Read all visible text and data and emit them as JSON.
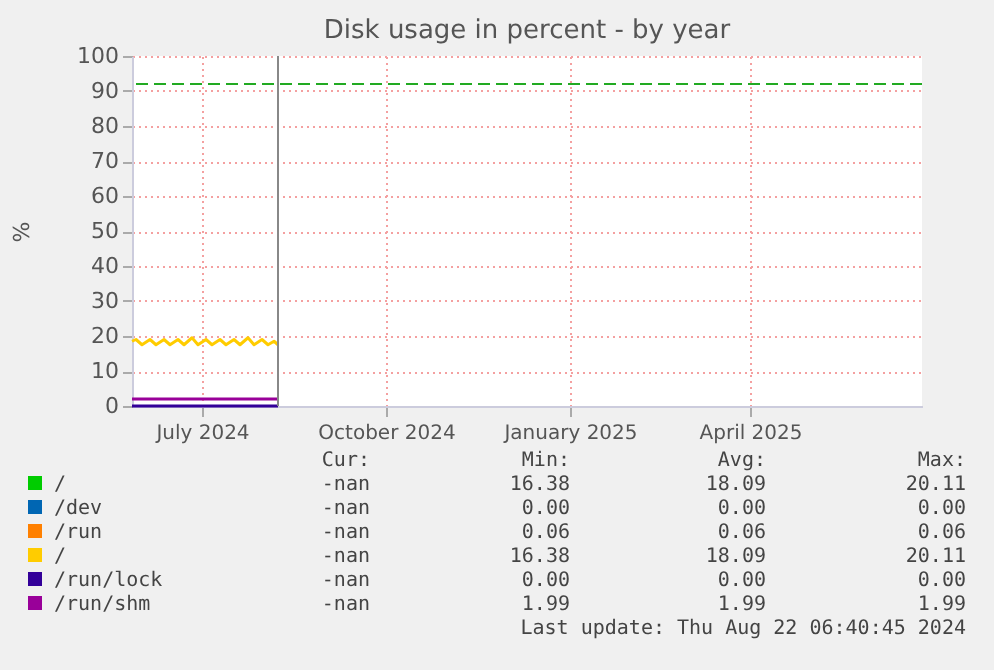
{
  "chart_data": {
    "type": "line",
    "title": "Disk usage in percent - by year",
    "ylabel": "%",
    "xlim": [
      "2024-06-10",
      "2025-07-10"
    ],
    "xticks": [
      {
        "value": "2024-07-15",
        "label": "July 2024"
      },
      {
        "value": "2024-10-15",
        "label": "October 2024"
      },
      {
        "value": "2025-01-15",
        "label": "January 2025"
      },
      {
        "value": "2025-04-15",
        "label": "April 2025"
      }
    ],
    "ylim": [
      0,
      100
    ],
    "yticks": [
      0,
      10,
      20,
      30,
      40,
      50,
      60,
      70,
      80,
      90,
      100
    ],
    "grid": true,
    "legend": "bottom",
    "line_style": "solid",
    "marker": "none",
    "series": [
      {
        "name": "/",
        "color": "#00cc00"
      },
      {
        "name": "/dev",
        "color": "#0066b3"
      },
      {
        "name": "/run",
        "color": "#ff8000"
      },
      {
        "name": "/",
        "color": "#ffcc00",
        "x": [
          "2024-06-10",
          "2024-06-12",
          "2024-06-15",
          "2024-06-19",
          "2024-06-22",
          "2024-06-26",
          "2024-06-29",
          "2024-07-03",
          "2024-07-06",
          "2024-07-10",
          "2024-07-13",
          "2024-07-17",
          "2024-07-20",
          "2024-07-24",
          "2024-07-27",
          "2024-07-31",
          "2024-08-03",
          "2024-08-07",
          "2024-08-10",
          "2024-08-14",
          "2024-08-17",
          "2024-08-20",
          "2024-08-22"
        ],
        "values": [
          18.5,
          19,
          17.5,
          19,
          17.5,
          19,
          17.5,
          19,
          17.5,
          19.5,
          17.5,
          19,
          17.5,
          19,
          17.5,
          19,
          17.5,
          19.5,
          17.5,
          19,
          17.5,
          18.5,
          17.5
        ]
      },
      {
        "name": "/run/lock",
        "color": "#330099",
        "x": [
          "2024-06-10",
          "2024-08-22"
        ],
        "values": [
          0,
          0
        ]
      },
      {
        "name": "/run/shm",
        "color": "#990099",
        "x": [
          "2024-06-10",
          "2024-08-22"
        ],
        "values": [
          2,
          2
        ]
      }
    ],
    "ref_lines": [
      {
        "axis": "y",
        "value": 92,
        "color": "#22aa22",
        "line_style": "dashed"
      },
      {
        "axis": "x",
        "value": "2024-08-22",
        "color": "#888888",
        "line_style": "solid"
      }
    ],
    "annotations": [
      "Cur:",
      "Min:",
      "Avg:",
      "Max:",
      "-nan",
      "16.38",
      "18.09",
      "20.11",
      "-nan",
      "0.00",
      "0.00",
      "0.00",
      "-nan",
      "0.06",
      "0.06",
      "0.06",
      "-nan",
      "16.38",
      "18.09",
      "20.11",
      "-nan",
      "0.00",
      "0.00",
      "0.00",
      "-nan",
      "1.99",
      "1.99",
      "1.99",
      "Last update: Thu Aug 22 06:40:45 2024"
    ]
  }
}
